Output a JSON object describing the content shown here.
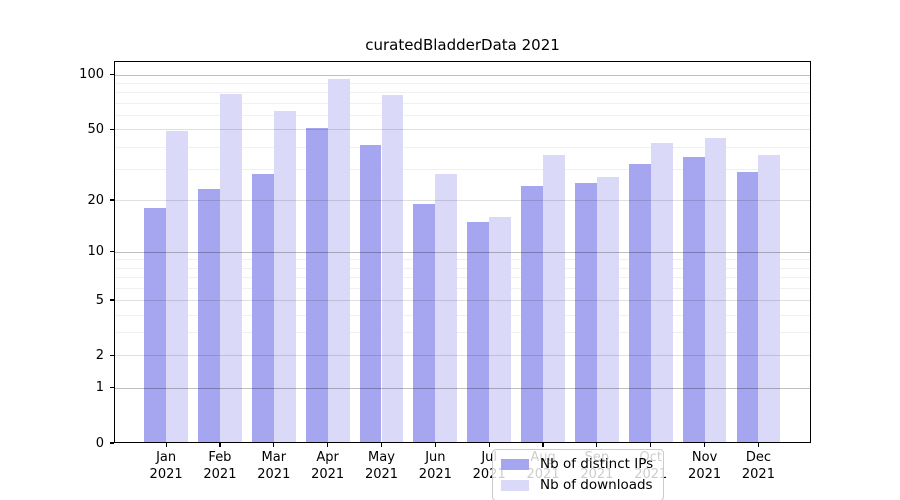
{
  "chart_data": {
    "type": "bar",
    "title": "curatedBladderData 2021",
    "categories": [
      "Jan",
      "Feb",
      "Mar",
      "Apr",
      "May",
      "Jun",
      "Jul",
      "Aug",
      "Sep",
      "Oct",
      "Nov",
      "Dec"
    ],
    "category_year": "2021",
    "series": [
      {
        "name": "Nb of distinct IPs",
        "color": "#a5a5f0",
        "values": [
          18,
          23,
          28,
          51,
          41,
          19,
          15,
          24,
          25,
          32,
          35,
          29
        ]
      },
      {
        "name": "Nb of downloads",
        "color": "#dadaf8",
        "values": [
          49,
          78,
          63,
          95,
          77,
          28,
          16,
          36,
          27,
          42,
          45,
          36
        ]
      }
    ],
    "y_axis": {
      "scale": "log10(value+1)",
      "tick_labels": [
        "0",
        "1",
        "2",
        "5",
        "10",
        "20",
        "50",
        "100"
      ],
      "tick_values": [
        0,
        1,
        2,
        5,
        10,
        20,
        50,
        100
      ],
      "axis_max": 119,
      "power_gridlines": [
        1,
        10,
        100
      ],
      "labeled_gridlines": [
        2,
        5,
        20,
        50
      ],
      "minor_gridlines": [
        3,
        4,
        6,
        7,
        8,
        9,
        30,
        40,
        60,
        70,
        80,
        90
      ]
    },
    "legend": {
      "location": "lower center"
    },
    "grid": true,
    "background_color": "#ffffff"
  }
}
